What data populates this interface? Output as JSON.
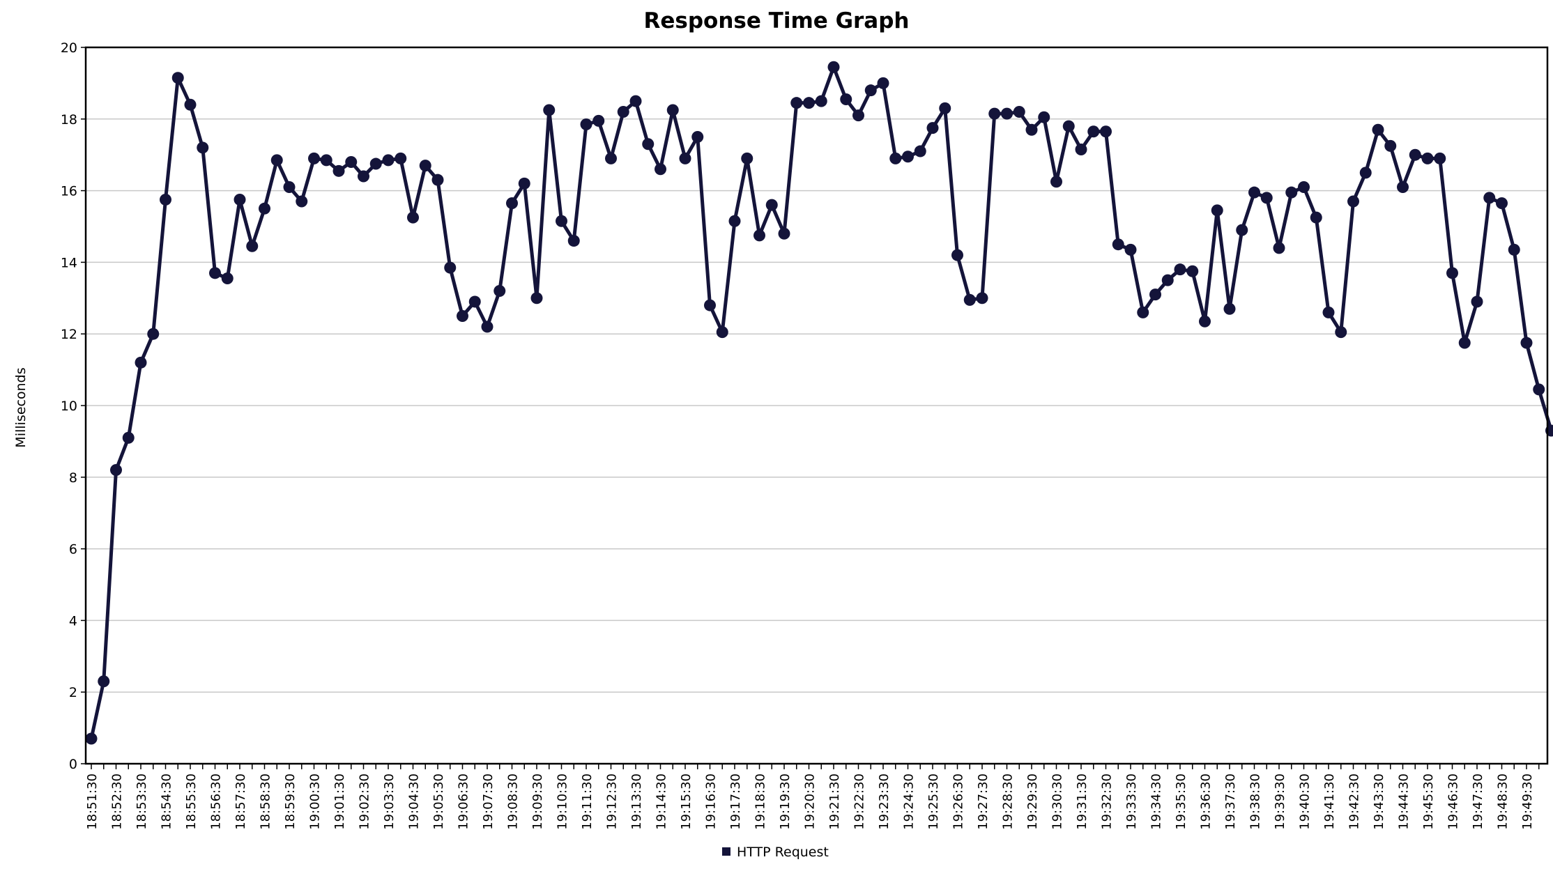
{
  "colors": {
    "series": "#14143a",
    "grid": "#c8c8c8",
    "axis": "#000000"
  },
  "chart_data": {
    "type": "line",
    "title": "Response Time Graph",
    "xlabel": "",
    "ylabel": "Milliseconds",
    "ylim": [
      0,
      20
    ],
    "yticks": [
      0,
      2,
      4,
      6,
      8,
      10,
      12,
      14,
      16,
      18,
      20
    ],
    "grid": true,
    "legend_position": "bottom",
    "tick_labels": [
      "18:51:30",
      "18:52:30",
      "18:53:30",
      "18:54:30",
      "18:55:30",
      "18:56:30",
      "18:57:30",
      "18:58:30",
      "18:59:30",
      "19:00:30",
      "19:01:30",
      "19:02:30",
      "19:03:30",
      "19:04:30",
      "19:05:30",
      "19:06:30",
      "19:07:30",
      "19:08:30",
      "19:09:30",
      "19:10:30",
      "19:11:30",
      "19:12:30",
      "19:13:30",
      "19:14:30",
      "19:15:30",
      "19:16:30",
      "19:17:30",
      "19:18:30",
      "19:19:30",
      "19:20:30",
      "19:21:30",
      "19:22:30",
      "19:23:30",
      "19:24:30",
      "19:25:30",
      "19:26:30",
      "19:27:30",
      "19:28:30",
      "19:29:30",
      "19:30:30",
      "19:31:30",
      "19:32:30",
      "19:33:30",
      "19:34:30",
      "19:35:30",
      "19:36:30",
      "19:37:30",
      "19:38:30",
      "19:39:30",
      "19:40:30",
      "19:41:30",
      "19:42:30",
      "19:43:30",
      "19:44:30",
      "19:45:30",
      "19:46:30",
      "19:47:30",
      "19:48:30",
      "19:49:30"
    ],
    "series": [
      {
        "name": "HTTP Request",
        "values": [
          0.7,
          2.3,
          8.2,
          9.1,
          11.2,
          12.0,
          15.75,
          19.15,
          18.4,
          17.2,
          13.7,
          13.55,
          15.75,
          14.45,
          15.5,
          16.85,
          16.1,
          15.7,
          16.9,
          16.85,
          16.55,
          16.8,
          16.4,
          16.75,
          16.85,
          16.9,
          15.25,
          16.7,
          16.3,
          13.85,
          12.5,
          12.9,
          12.2,
          13.2,
          15.65,
          16.2,
          13.0,
          18.25,
          15.15,
          14.6,
          17.85,
          17.95,
          16.9,
          18.2,
          18.5,
          17.3,
          16.6,
          18.25,
          16.9,
          17.5,
          12.8,
          12.05,
          15.15,
          16.9,
          14.75,
          15.6,
          14.8,
          18.45,
          18.45,
          18.5,
          19.45,
          18.55,
          18.1,
          18.8,
          19.0,
          16.9,
          16.95,
          17.1,
          17.75,
          18.3,
          14.2,
          12.95,
          13.0,
          18.15,
          18.15,
          18.2,
          17.7,
          18.05,
          16.25,
          17.8,
          17.15,
          17.65,
          17.65,
          14.5,
          14.35,
          12.6,
          13.1,
          13.5,
          13.8,
          13.75,
          12.35,
          15.45,
          12.7,
          14.9,
          15.95,
          15.8,
          14.4,
          15.95,
          16.1,
          15.25,
          12.6,
          12.05,
          15.7,
          16.5,
          17.7,
          17.25,
          16.1,
          17.0,
          16.9,
          16.9,
          13.7,
          11.75,
          12.9,
          15.8,
          15.65,
          14.35,
          11.75,
          10.45,
          9.3
        ]
      }
    ]
  }
}
